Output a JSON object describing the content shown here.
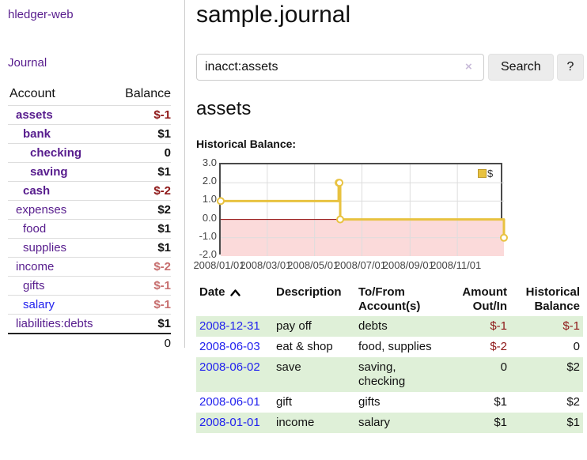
{
  "app": {
    "brand": "hledger-web",
    "nav_journal": "Journal"
  },
  "colors": {
    "accent_purple": "#571c8d",
    "link_blue": "#2222ee",
    "negative_strong": "#8e1717",
    "negative_soft": "#c76e6e",
    "row_stripe_green": "#dff0d8",
    "chart_line_gold": "#E8C240",
    "negative_region_pink": "#fbdada",
    "zero_line_red": "#8b0000"
  },
  "sidebar": {
    "header": {
      "account": "Account",
      "balance": "Balance"
    },
    "accounts": [
      {
        "label": "assets",
        "balance": "$-1",
        "indent": 1,
        "emphasis": true,
        "balance_tone": "neg-strong"
      },
      {
        "label": "bank",
        "balance": "$1",
        "indent": 2,
        "emphasis": true,
        "balance_tone": "normal"
      },
      {
        "label": "checking",
        "balance": "0",
        "indent": 3,
        "emphasis": true,
        "balance_tone": "normal"
      },
      {
        "label": "saving",
        "balance": "$1",
        "indent": 3,
        "emphasis": true,
        "balance_tone": "normal"
      },
      {
        "label": "cash",
        "balance": "$-2",
        "indent": 2,
        "emphasis": true,
        "balance_tone": "neg-strong"
      },
      {
        "label": "expenses",
        "balance": "$2",
        "indent": 1,
        "emphasis": false,
        "balance_tone": "normal"
      },
      {
        "label": "food",
        "balance": "$1",
        "indent": 2,
        "emphasis": false,
        "balance_tone": "normal"
      },
      {
        "label": "supplies",
        "balance": "$1",
        "indent": 2,
        "emphasis": false,
        "balance_tone": "normal"
      },
      {
        "label": "income",
        "balance": "$-2",
        "indent": 1,
        "emphasis": false,
        "balance_tone": "neg-soft"
      },
      {
        "label": "gifts",
        "balance": "$-1",
        "indent": 2,
        "emphasis": false,
        "balance_tone": "neg-soft"
      },
      {
        "label": "salary",
        "balance": "$-1",
        "indent": 2,
        "emphasis": false,
        "balance_tone": "neg-soft",
        "link_color": "blue"
      },
      {
        "label": "liabilities:debts",
        "balance": "$1",
        "indent": 1,
        "emphasis": false,
        "balance_tone": "normal"
      }
    ],
    "total": "0"
  },
  "main": {
    "title": "sample.journal",
    "search": {
      "value": "inacct:assets",
      "clear_icon": "×",
      "button_label": "Search",
      "help_label": "?"
    },
    "account_heading": "assets",
    "chart_label": "Historical Balance:"
  },
  "chart_data": {
    "type": "line",
    "title": "Historical Balance:",
    "series": [
      {
        "name": "$",
        "color": "#E8C240",
        "step": true,
        "points": [
          [
            "2008-01-01",
            1
          ],
          [
            "2008-06-01",
            2
          ],
          [
            "2008-06-02",
            2
          ],
          [
            "2008-06-03",
            0
          ],
          [
            "2008-12-31",
            -1
          ]
        ]
      }
    ],
    "xlim": [
      "2008-01-01",
      "2008-12-31"
    ],
    "ylim": [
      -2,
      3
    ],
    "y_ticks": [
      {
        "value": 3,
        "label": "3.0"
      },
      {
        "value": 2,
        "label": "2.0"
      },
      {
        "value": 1,
        "label": "1.0"
      },
      {
        "value": 0,
        "label": "0.0"
      },
      {
        "value": -1,
        "label": "-1.0"
      },
      {
        "value": -2,
        "label": "-2.0"
      }
    ],
    "x_ticks": [
      {
        "date": "2008-01-01",
        "label": "2008/01/01"
      },
      {
        "date": "2008-03-01",
        "label": "2008/03/01"
      },
      {
        "date": "2008-05-01",
        "label": "2008/05/01"
      },
      {
        "date": "2008-07-01",
        "label": "2008/07/01"
      },
      {
        "date": "2008-09-01",
        "label": "2008/09/01"
      },
      {
        "date": "2008-11-01",
        "label": "2008/11/01"
      }
    ],
    "grid": true,
    "legend": {
      "label": "$",
      "position": "top-right"
    },
    "annotations": {
      "negative_region_below": 0,
      "zero_line": true
    }
  },
  "register": {
    "headers": {
      "date": "Date",
      "description": "Description",
      "tofrom": "To/From Account(s)",
      "amount": "Amount Out/In",
      "balance": "Historical Balance"
    },
    "sort": {
      "column": "date",
      "direction": "ascending"
    },
    "rows": [
      {
        "date": "2008-12-31",
        "description": "pay off",
        "accounts": "debts",
        "amount": "$-1",
        "balance": "$-1"
      },
      {
        "date": "2008-06-03",
        "description": "eat & shop",
        "accounts": "food, supplies",
        "amount": "$-2",
        "balance": "0"
      },
      {
        "date": "2008-06-02",
        "description": "save",
        "accounts": "saving, checking",
        "amount": "0",
        "balance": "$2"
      },
      {
        "date": "2008-06-01",
        "description": "gift",
        "accounts": "gifts",
        "amount": "$1",
        "balance": "$2"
      },
      {
        "date": "2008-01-01",
        "description": "income",
        "accounts": "salary",
        "amount": "$1",
        "balance": "$1"
      }
    ]
  }
}
